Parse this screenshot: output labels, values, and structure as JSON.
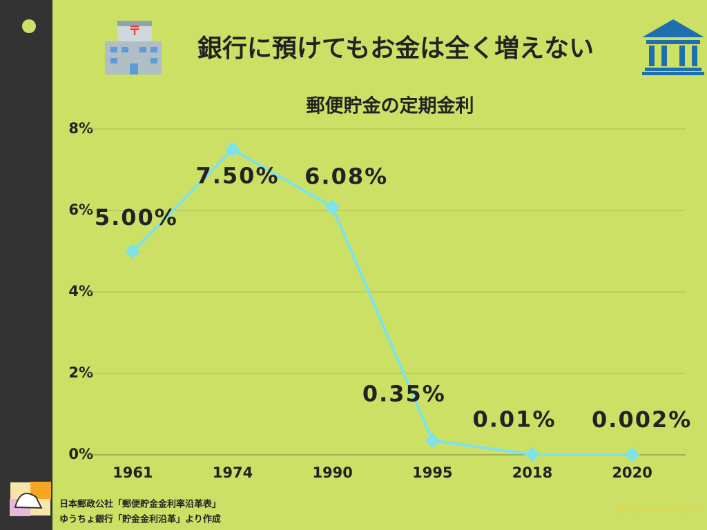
{
  "header": {
    "title": "銀行に預けてもお金は全く増えない"
  },
  "chart_data": {
    "type": "line",
    "title": "郵便貯金の定期金利",
    "categories": [
      "1961",
      "1974",
      "1990",
      "1995",
      "2018",
      "2020"
    ],
    "series": [
      {
        "name": "郵便貯金の定期金利",
        "color": "#7de3e8",
        "values": [
          5,
          7.5,
          6.08,
          0.35,
          0.01,
          0.002
        ],
        "value_labels": [
          "5.00%",
          "7.50%",
          "6.08%",
          "0.35%",
          "0.01%",
          "0.002%"
        ]
      }
    ],
    "ylim": [
      0,
      8
    ],
    "yticks": [
      {
        "value": 0,
        "label": "0%"
      },
      {
        "value": 2,
        "label": "2%"
      },
      {
        "value": 4,
        "label": "4%"
      },
      {
        "value": 6,
        "label": "6%"
      },
      {
        "value": 8,
        "label": "8%"
      }
    ],
    "grid": true
  },
  "footer": {
    "source": [
      "日本郵政公社「郵便貯金金利率沿革表」",
      "ゆうちょ銀行「貯金金利沿革」より作成"
    ],
    "credit": "@uminoxhiro"
  }
}
